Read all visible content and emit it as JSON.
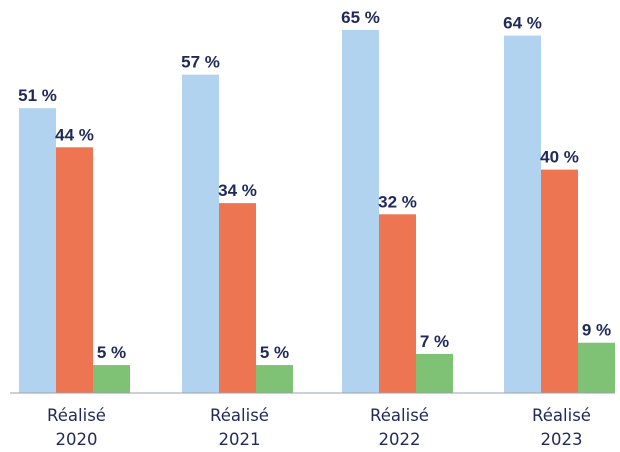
{
  "chart_data": {
    "type": "bar",
    "title": "",
    "xlabel": "",
    "ylabel": "",
    "ylim": [
      0,
      65
    ],
    "grid": false,
    "legend": "none",
    "categories": [
      [
        "Réalisé",
        "2020"
      ],
      [
        "Réalisé",
        "2021"
      ],
      [
        "Réalisé",
        "2022"
      ],
      [
        "Réalisé",
        "2023"
      ]
    ],
    "series": [
      {
        "values": [
          51,
          57,
          65,
          64
        ],
        "labels": [
          "51 %",
          "57 %",
          "65 %",
          "64 %"
        ],
        "color": "#b2d3f0"
      },
      {
        "values": [
          44,
          34,
          32,
          40
        ],
        "labels": [
          "44 %",
          "34 %",
          "32 %",
          "40 %"
        ],
        "color": "#ee7552"
      },
      {
        "values": [
          5,
          5,
          7,
          9
        ],
        "labels": [
          "5 %",
          "5 %",
          "7 %",
          "9 %"
        ],
        "color": "#7fc275"
      }
    ],
    "label_color": "#1f2a5a",
    "category_label_color": "#1f2a5a",
    "axis_color": "#9aa3ad"
  }
}
